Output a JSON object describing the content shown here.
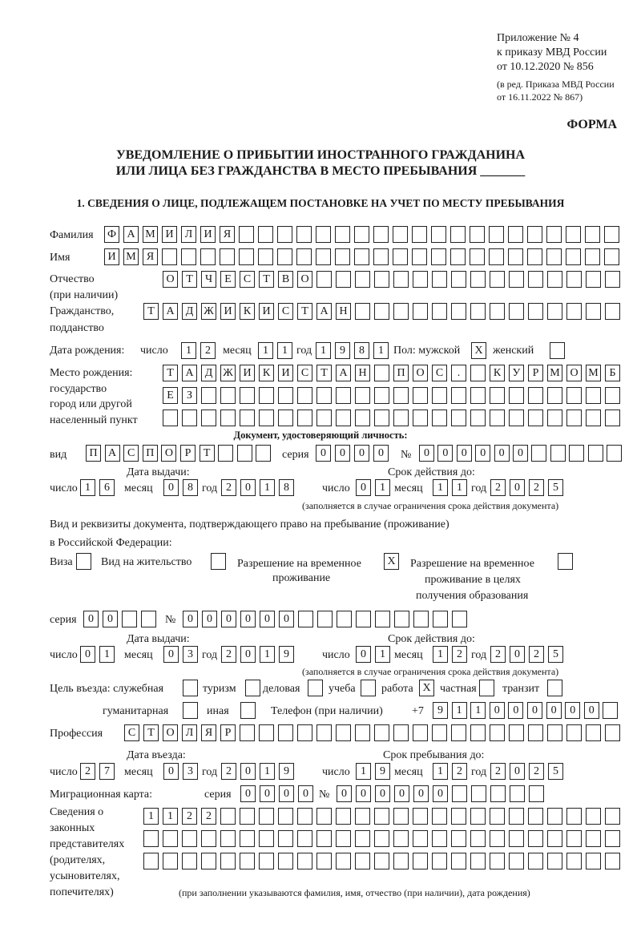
{
  "header": {
    "appendix": "Приложение № 4",
    "order": "к приказу МВД России",
    "order_date": "от 10.12.2020 № 856",
    "edition": "(в ред. Приказа МВД России",
    "edition_date": "от 16.11.2022 № 867)",
    "form_label": "ФОРМА",
    "title_line1": "УВЕДОМЛЕНИЕ О ПРИБЫТИИ ИНОСТРАННОГО ГРАЖДАНИНА",
    "title_line2": "ИЛИ ЛИЦА БЕЗ ГРАЖДАНСТВА В МЕСТО ПРЕБЫВАНИЯ _______",
    "section1": "1. СВЕДЕНИЯ О ЛИЦЕ, ПОДЛЕЖАЩЕМ ПОСТАНОВКЕ НА УЧЕТ ПО МЕСТУ ПРЕБЫВАНИЯ"
  },
  "labels": {
    "surname": "Фамилия",
    "name": "Имя",
    "patronymic": "Отчество",
    "if_any": "(при наличии)",
    "citizenship": "Гражданство,",
    "subject": "подданство",
    "birth_date": "Дата рождения:",
    "day": "число",
    "month": "месяц",
    "year": "год",
    "sex_male": "Пол: мужской",
    "sex_female": "женский",
    "birth_place": "Место рождения:",
    "state": "государство",
    "city": "город или другой",
    "locality": "населенный пункт",
    "id_doc": "Документ, удостоверяющий личность:",
    "kind": "вид",
    "series": "серия",
    "number": "№",
    "issue_date": "Дата выдачи:",
    "valid_until": "Срок действия до:",
    "validity_note": "(заполняется в случае ограничения срока действия документа)",
    "stay_doc1": "Вид и реквизиты документа, подтверждающего право на пребывание (проживание)",
    "stay_doc2": "в Российской Федерации:",
    "visa": "Виза",
    "residence": "Вид на жительство",
    "temp_res1": "Разрешение на временное",
    "temp_res2": "проживание",
    "temp_edu1": "Разрешение на временное",
    "temp_edu2": "проживание в целях",
    "temp_edu3": "получения образования",
    "purpose": "Цель въезда: служебная",
    "tourism": "туризм",
    "business": "деловая",
    "study": "учеба",
    "work": "работа",
    "private": "частная",
    "transit": "транзит",
    "humanitarian": "гуманитарная",
    "other": "иная",
    "phone": "Телефон (при наличии)",
    "phone_prefix": "+7",
    "profession": "Профессия",
    "entry_date": "Дата въезда:",
    "stay_until": "Срок пребывания до:",
    "migration_card": "Миграционная карта:",
    "reps1": "Сведения о",
    "reps2": "законных",
    "reps3": "представителях",
    "reps4": "(родителях,",
    "reps5": "усыновителях,",
    "reps6": "попечителях)",
    "reps_note": "(при заполнении указываются фамилия, имя, отчество (при наличии), дата рождения)"
  },
  "fields": {
    "surname": "ФАМИЛИЯ",
    "name": "ИМЯ",
    "patronymic": "ОТЧЕСТВО",
    "citizenship": "ТАДЖИКИСТАН",
    "birth_day": "12",
    "birth_month": "11",
    "birth_year": "1981",
    "sex_male": "X",
    "sex_female": "",
    "birth_place_1": "ТАДЖИКИСТАН ПОС. КУРМОМБ",
    "birth_place_2": "ЕЗ",
    "birth_place_3": "",
    "id_kind": "ПАСПОРТ",
    "id_series": "0000",
    "id_number": "000000",
    "id_issue_day": "16",
    "id_issue_month": "08",
    "id_issue_year": "2018",
    "id_valid_day": "01",
    "id_valid_month": "11",
    "id_valid_year": "2025",
    "visa": "",
    "residence": "",
    "temp_res": "X",
    "temp_edu": "",
    "stay_series": "00",
    "stay_number": "000000",
    "stay_issue_day": "01",
    "stay_issue_month": "03",
    "stay_issue_year": "2019",
    "stay_valid_day": "01",
    "stay_valid_month": "12",
    "stay_valid_year": "2025",
    "purpose_service": "",
    "purpose_tourism": "",
    "purpose_business": "",
    "purpose_study": "",
    "purpose_work": "X",
    "purpose_private": "",
    "purpose_transit": "",
    "purpose_humanitarian": "",
    "purpose_other": "",
    "phone": "911000000",
    "profession": "СТОЛЯР",
    "entry_day": "27",
    "entry_month": "03",
    "entry_year": "2019",
    "stay_day": "19",
    "stay_month": "12",
    "stay_year": "2025",
    "mig_series": "0000",
    "mig_number": "000000",
    "reps_1": "1122",
    "reps_2": "",
    "reps_3": ""
  }
}
